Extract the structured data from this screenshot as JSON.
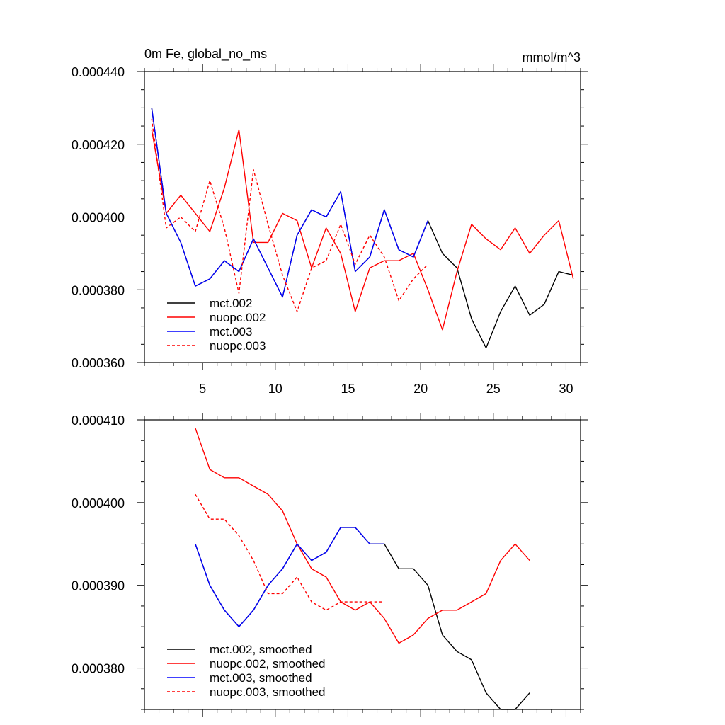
{
  "chart_data": [
    {
      "type": "line",
      "title": "0m Fe, global_no_ms",
      "units_label": "mmol/m^3",
      "xlim": [
        1,
        31
      ],
      "ylim": [
        0.00036,
        0.00044
      ],
      "x_major_ticks": [
        5,
        10,
        15,
        20,
        25,
        30
      ],
      "x_tick_labels": [
        "5",
        "10",
        "15",
        "20",
        "25",
        "30"
      ],
      "y_major_ticks": [
        0.00036,
        0.00038,
        0.0004,
        0.00042,
        0.00044
      ],
      "y_tick_labels": [
        "0.000360",
        "0.000380",
        "0.000400",
        "0.000420",
        "0.000440"
      ],
      "legend_position": "bottom-left",
      "series": [
        {
          "name": "mct.002",
          "color": "#000000",
          "dash": "solid",
          "x": [
            1.5,
            2.5,
            3.5,
            4.5,
            5.5,
            6.5,
            7.5,
            8.5,
            9.5,
            10.5,
            11.5,
            12.5,
            13.5,
            14.5,
            15.5,
            16.5,
            17.5,
            18.5,
            19.5,
            20.5,
            21.5,
            22.5,
            23.5,
            24.5,
            25.5,
            26.5,
            27.5,
            28.5,
            29.5,
            30.5
          ],
          "y": [
            0.00043,
            0.000401,
            0.000393,
            0.000381,
            0.000383,
            0.000388,
            0.000385,
            0.000394,
            0.000386,
            0.000378,
            0.000395,
            0.000402,
            0.0004,
            0.000407,
            0.000385,
            0.000389,
            0.000402,
            0.000391,
            0.000389,
            0.000399,
            0.00039,
            0.000386,
            0.000372,
            0.000364,
            0.000374,
            0.000381,
            0.000373,
            0.000376,
            0.000385,
            0.000384
          ]
        },
        {
          "name": "nuopc.002",
          "color": "#ff0000",
          "dash": "solid",
          "x": [
            1.5,
            2.5,
            3.5,
            4.5,
            5.5,
            6.5,
            7.5,
            8.5,
            9.5,
            10.5,
            11.5,
            12.5,
            13.5,
            14.5,
            15.5,
            16.5,
            17.5,
            18.5,
            19.5,
            20.5,
            21.5,
            22.5,
            23.5,
            24.5,
            25.5,
            26.5,
            27.5,
            28.5,
            29.5,
            30.5
          ],
          "y": [
            0.000424,
            0.000401,
            0.000406,
            0.000401,
            0.000396,
            0.000408,
            0.000424,
            0.000393,
            0.000393,
            0.000401,
            0.000399,
            0.000386,
            0.000397,
            0.00039,
            0.000374,
            0.000386,
            0.000388,
            0.000388,
            0.00039,
            0.00038,
            0.000369,
            0.000385,
            0.000398,
            0.000394,
            0.000391,
            0.000397,
            0.00039,
            0.000395,
            0.000399,
            0.000383
          ]
        },
        {
          "name": "mct.003",
          "color": "#0000ff",
          "dash": "solid",
          "x": [
            1.5,
            2.5,
            3.5,
            4.5,
            5.5,
            6.5,
            7.5,
            8.5,
            9.5,
            10.5,
            11.5,
            12.5,
            13.5,
            14.5,
            15.5,
            16.5,
            17.5,
            18.5,
            19.5,
            20.5
          ],
          "y": [
            0.00043,
            0.000401,
            0.000393,
            0.000381,
            0.000383,
            0.000388,
            0.000385,
            0.000394,
            0.000386,
            0.000378,
            0.000395,
            0.000402,
            0.0004,
            0.000407,
            0.000385,
            0.000389,
            0.000402,
            0.000391,
            0.000389,
            0.000399
          ]
        },
        {
          "name": "nuopc.003",
          "color": "#ff0000",
          "dash": "dashed",
          "x": [
            1.5,
            2.5,
            3.5,
            4.5,
            5.5,
            6.5,
            7.5,
            8.5,
            9.5,
            10.5,
            11.5,
            12.5,
            13.5,
            14.5,
            15.5,
            16.5,
            17.5,
            18.5,
            19.5,
            20.5
          ],
          "y": [
            0.000427,
            0.000397,
            0.0004,
            0.000396,
            0.00041,
            0.000397,
            0.000379,
            0.000413,
            0.000398,
            0.000384,
            0.000374,
            0.000386,
            0.000388,
            0.000398,
            0.000387,
            0.000395,
            0.000389,
            0.000377,
            0.000383,
            0.000387
          ]
        }
      ]
    },
    {
      "type": "line",
      "title": "",
      "xlim": [
        1,
        31
      ],
      "ylim": [
        0.000375,
        0.00041
      ],
      "x_major_ticks": [
        5,
        10,
        15,
        20,
        25,
        30
      ],
      "x_tick_labels": [],
      "y_major_ticks": [
        0.00038,
        0.00039,
        0.0004,
        0.00041
      ],
      "y_tick_labels": [
        "0.000380",
        "0.000390",
        "0.000400",
        "0.000410"
      ],
      "legend_position": "bottom-left",
      "series": [
        {
          "name": "mct.002, smoothed",
          "color": "#000000",
          "dash": "solid",
          "x": [
            4.5,
            5.5,
            6.5,
            7.5,
            8.5,
            9.5,
            10.5,
            11.5,
            12.5,
            13.5,
            14.5,
            15.5,
            16.5,
            17.5,
            18.5,
            19.5,
            20.5,
            21.5,
            22.5,
            23.5,
            24.5,
            25.5,
            26.5,
            27.5
          ],
          "y": [
            0.000395,
            0.00039,
            0.000387,
            0.000385,
            0.000387,
            0.00039,
            0.000392,
            0.000395,
            0.000393,
            0.000394,
            0.000397,
            0.000397,
            0.000395,
            0.000395,
            0.000392,
            0.000392,
            0.00039,
            0.000384,
            0.000382,
            0.000381,
            0.000377,
            0.000375,
            0.000375,
            0.000377
          ]
        },
        {
          "name": "nuopc.002, smoothed",
          "color": "#ff0000",
          "dash": "solid",
          "x": [
            4.5,
            5.5,
            6.5,
            7.5,
            8.5,
            9.5,
            10.5,
            11.5,
            12.5,
            13.5,
            14.5,
            15.5,
            16.5,
            17.5,
            18.5,
            19.5,
            20.5,
            21.5,
            22.5,
            23.5,
            24.5,
            25.5,
            26.5,
            27.5
          ],
          "y": [
            0.000409,
            0.000404,
            0.000403,
            0.000403,
            0.000402,
            0.000401,
            0.000399,
            0.000395,
            0.000392,
            0.000391,
            0.000388,
            0.000387,
            0.000388,
            0.000386,
            0.000383,
            0.000384,
            0.000386,
            0.000387,
            0.000387,
            0.000388,
            0.000389,
            0.000393,
            0.000395,
            0.000393
          ]
        },
        {
          "name": "mct.003, smoothed",
          "color": "#0000ff",
          "dash": "solid",
          "x": [
            4.5,
            5.5,
            6.5,
            7.5,
            8.5,
            9.5,
            10.5,
            11.5,
            12.5,
            13.5,
            14.5,
            15.5,
            16.5,
            17.5
          ],
          "y": [
            0.000395,
            0.00039,
            0.000387,
            0.000385,
            0.000387,
            0.00039,
            0.000392,
            0.000395,
            0.000393,
            0.000394,
            0.000397,
            0.000397,
            0.000395,
            0.000395
          ]
        },
        {
          "name": "nuopc.003, smoothed",
          "color": "#ff0000",
          "dash": "dashed",
          "x": [
            4.5,
            5.5,
            6.5,
            7.5,
            8.5,
            9.5,
            10.5,
            11.5,
            12.5,
            13.5,
            14.5,
            15.5,
            16.5,
            17.5
          ],
          "y": [
            0.000401,
            0.000398,
            0.000398,
            0.000396,
            0.000393,
            0.000389,
            0.000389,
            0.000391,
            0.000388,
            0.000387,
            0.000388,
            0.000388,
            0.000388,
            0.000388
          ]
        }
      ]
    }
  ]
}
